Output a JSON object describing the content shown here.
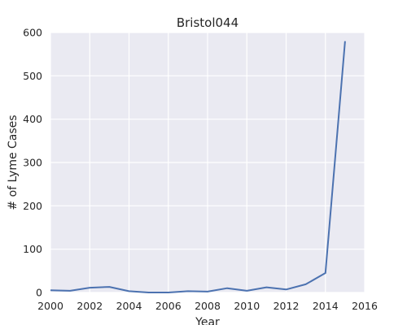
{
  "chart_data": {
    "type": "line",
    "title": "Bristol044",
    "xlabel": "Year",
    "ylabel": "# of Lyme Cases",
    "xlim": [
      2000,
      2016
    ],
    "ylim": [
      0,
      600
    ],
    "xticks": [
      2000,
      2002,
      2004,
      2006,
      2008,
      2010,
      2012,
      2014,
      2016
    ],
    "yticks": [
      0,
      100,
      200,
      300,
      400,
      500,
      600
    ],
    "grid": true,
    "legend": "none",
    "colors": {
      "background": "#eaeaf2",
      "grid": "#ffffff",
      "line": "#4c72b0"
    },
    "series": [
      {
        "x": [
          2000,
          2001,
          2002,
          2003,
          2004,
          2005,
          2006,
          2007,
          2008,
          2009,
          2010,
          2011,
          2012,
          2013,
          2014,
          2015
        ],
        "y": [
          5,
          4,
          11,
          13,
          3,
          0,
          0,
          3,
          2,
          10,
          4,
          12,
          7,
          19,
          45,
          580
        ]
      }
    ]
  }
}
